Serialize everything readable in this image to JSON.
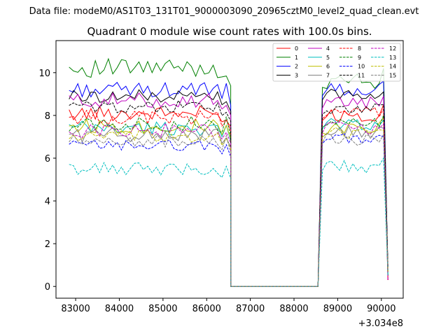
{
  "header": {
    "suptitle": "Data file: modeM0/AS1T03_131T01_9000003090_20965cztM0_level2_quad_clean.evt"
  },
  "chart_data": {
    "type": "line",
    "title": "Quadrant 0 module wise count rates with 100.0s bins.",
    "xlabel": "",
    "ylabel": "",
    "x_offset_label": "+3.034e8",
    "xlim": [
      82550,
      90500
    ],
    "ylim": [
      -0.55,
      11.5
    ],
    "xticks": [
      83000,
      84000,
      85000,
      86000,
      87000,
      88000,
      89000,
      90000
    ],
    "xtick_labels": [
      "83000",
      "84000",
      "85000",
      "86000",
      "87000",
      "88000",
      "89000",
      "90000"
    ],
    "yticks": [
      0,
      2,
      4,
      6,
      8,
      10
    ],
    "ytick_labels": [
      "0",
      "2",
      "4",
      "6",
      "8",
      "10"
    ],
    "legend_location": "upper right",
    "legend_columns": 4,
    "segments": [
      {
        "start": 82850,
        "step": 100,
        "count": 38
      },
      {
        "gap_start": 86550,
        "gap_end": 88550,
        "value": 0.0
      },
      {
        "start": 88650,
        "step": 100,
        "count": 16
      }
    ],
    "series": [
      {
        "name": "0",
        "color": "#ff0000",
        "dash": "solid",
        "level1": 8.1,
        "amp1": 0.35,
        "level2": 8.0,
        "amp2": 0.3,
        "peak_end": 8.5
      },
      {
        "name": "1",
        "color": "#008000",
        "dash": "solid",
        "level1": 10.2,
        "amp1": 0.45,
        "level2": 9.6,
        "amp2": 0.35,
        "peak_end": 10.2
      },
      {
        "name": "2",
        "color": "#0000ff",
        "dash": "solid",
        "level1": 9.2,
        "amp1": 0.35,
        "level2": 9.2,
        "amp2": 0.3,
        "peak_end": 9.6
      },
      {
        "name": "3",
        "color": "#000000",
        "dash": "solid",
        "level1": 8.9,
        "amp1": 0.3,
        "level2": 9.0,
        "amp2": 0.3,
        "peak_end": 9.1
      },
      {
        "name": "4",
        "color": "#bf00bf",
        "dash": "solid",
        "level1": 8.7,
        "amp1": 0.35,
        "level2": 8.6,
        "amp2": 0.3,
        "peak_end": 8.9
      },
      {
        "name": "5",
        "color": "#00bfbf",
        "dash": "solid",
        "level1": 7.4,
        "amp1": 0.35,
        "level2": 7.6,
        "amp2": 0.3,
        "peak_end": 7.8
      },
      {
        "name": "6",
        "color": "#bfbf00",
        "dash": "solid",
        "level1": 7.5,
        "amp1": 0.35,
        "level2": 7.4,
        "amp2": 0.3,
        "peak_end": 7.9
      },
      {
        "name": "7",
        "color": "#808080",
        "dash": "solid",
        "level1": 7.1,
        "amp1": 0.35,
        "level2": 7.2,
        "amp2": 0.3,
        "peak_end": 7.4
      },
      {
        "name": "8",
        "color": "#ff0000",
        "dash": "dashed",
        "level1": 7.9,
        "amp1": 0.35,
        "level2": 8.1,
        "amp2": 0.3,
        "peak_end": 8.3
      },
      {
        "name": "9",
        "color": "#008000",
        "dash": "dashed",
        "level1": 7.6,
        "amp1": 0.35,
        "level2": 7.7,
        "amp2": 0.3,
        "peak_end": 8.0
      },
      {
        "name": "10",
        "color": "#0000ff",
        "dash": "dashed",
        "level1": 6.6,
        "amp1": 0.25,
        "level2": 6.9,
        "amp2": 0.25,
        "peak_end": 7.0
      },
      {
        "name": "11",
        "color": "#000000",
        "dash": "dashed",
        "level1": 8.4,
        "amp1": 0.3,
        "level2": 8.3,
        "amp2": 0.25,
        "peak_end": 8.5
      },
      {
        "name": "12",
        "color": "#bf00bf",
        "dash": "dashed",
        "level1": 7.3,
        "amp1": 0.35,
        "level2": 7.4,
        "amp2": 0.3,
        "peak_end": 7.6
      },
      {
        "name": "13",
        "color": "#00bfbf",
        "dash": "dashed",
        "level1": 5.5,
        "amp1": 0.3,
        "level2": 5.6,
        "amp2": 0.3,
        "peak_end": 6.0
      },
      {
        "name": "14",
        "color": "#bfbf00",
        "dash": "dashed",
        "level1": 7.0,
        "amp1": 0.3,
        "level2": 7.2,
        "amp2": 0.3,
        "peak_end": 7.3
      },
      {
        "name": "15",
        "color": "#808080",
        "dash": "dashed",
        "level1": 6.8,
        "amp1": 0.3,
        "level2": 6.9,
        "amp2": 0.3,
        "peak_end": 7.1
      }
    ]
  }
}
